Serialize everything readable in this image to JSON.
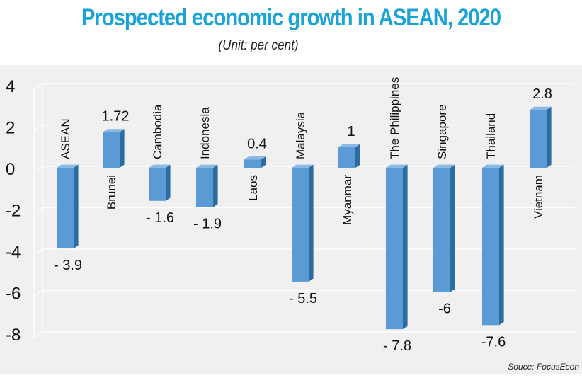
{
  "header": {
    "title": "Prospected economic growth in ASEAN, 2020",
    "subtitle": "(Unit: per cent)",
    "title_color": "#1aa3d8"
  },
  "footer": {
    "source": "Souce: FocusEcon"
  },
  "colors": {
    "bar_front": "#5b9bd5",
    "bar_side": "#2e6b9e",
    "bar_top": "#8ab9e6",
    "panel_bg": "#f0f0f0",
    "grid": "#ffffff"
  },
  "chart_data": {
    "type": "bar",
    "title": "Prospected economic growth in ASEAN, 2020",
    "subtitle": "(Unit: per cent)",
    "xlabel": "",
    "ylabel": "",
    "ylim": [
      -8,
      4
    ],
    "yticks": [
      4,
      2,
      0,
      -2,
      -4,
      -6,
      -8
    ],
    "grid": true,
    "legend": null,
    "categories": [
      "ASEAN",
      "Brunei",
      "Cambodia",
      "Indonesia",
      "Laos",
      "Malaysia",
      "Myanmar",
      "The Philippines",
      "Singapore",
      "Thailand",
      "Vietnam"
    ],
    "values": [
      -3.9,
      1.72,
      -1.6,
      -1.9,
      0.4,
      -5.5,
      1,
      -7.8,
      -6,
      -7.6,
      2.8
    ],
    "value_labels": [
      "-  3.9",
      "1.72",
      "-  1.6",
      "-  1.9",
      "0.4",
      "-  5.5",
      "1",
      "-  7.8",
      "-6",
      "-7.6",
      "2.8"
    ],
    "source": "Souce: FocusEcon"
  }
}
